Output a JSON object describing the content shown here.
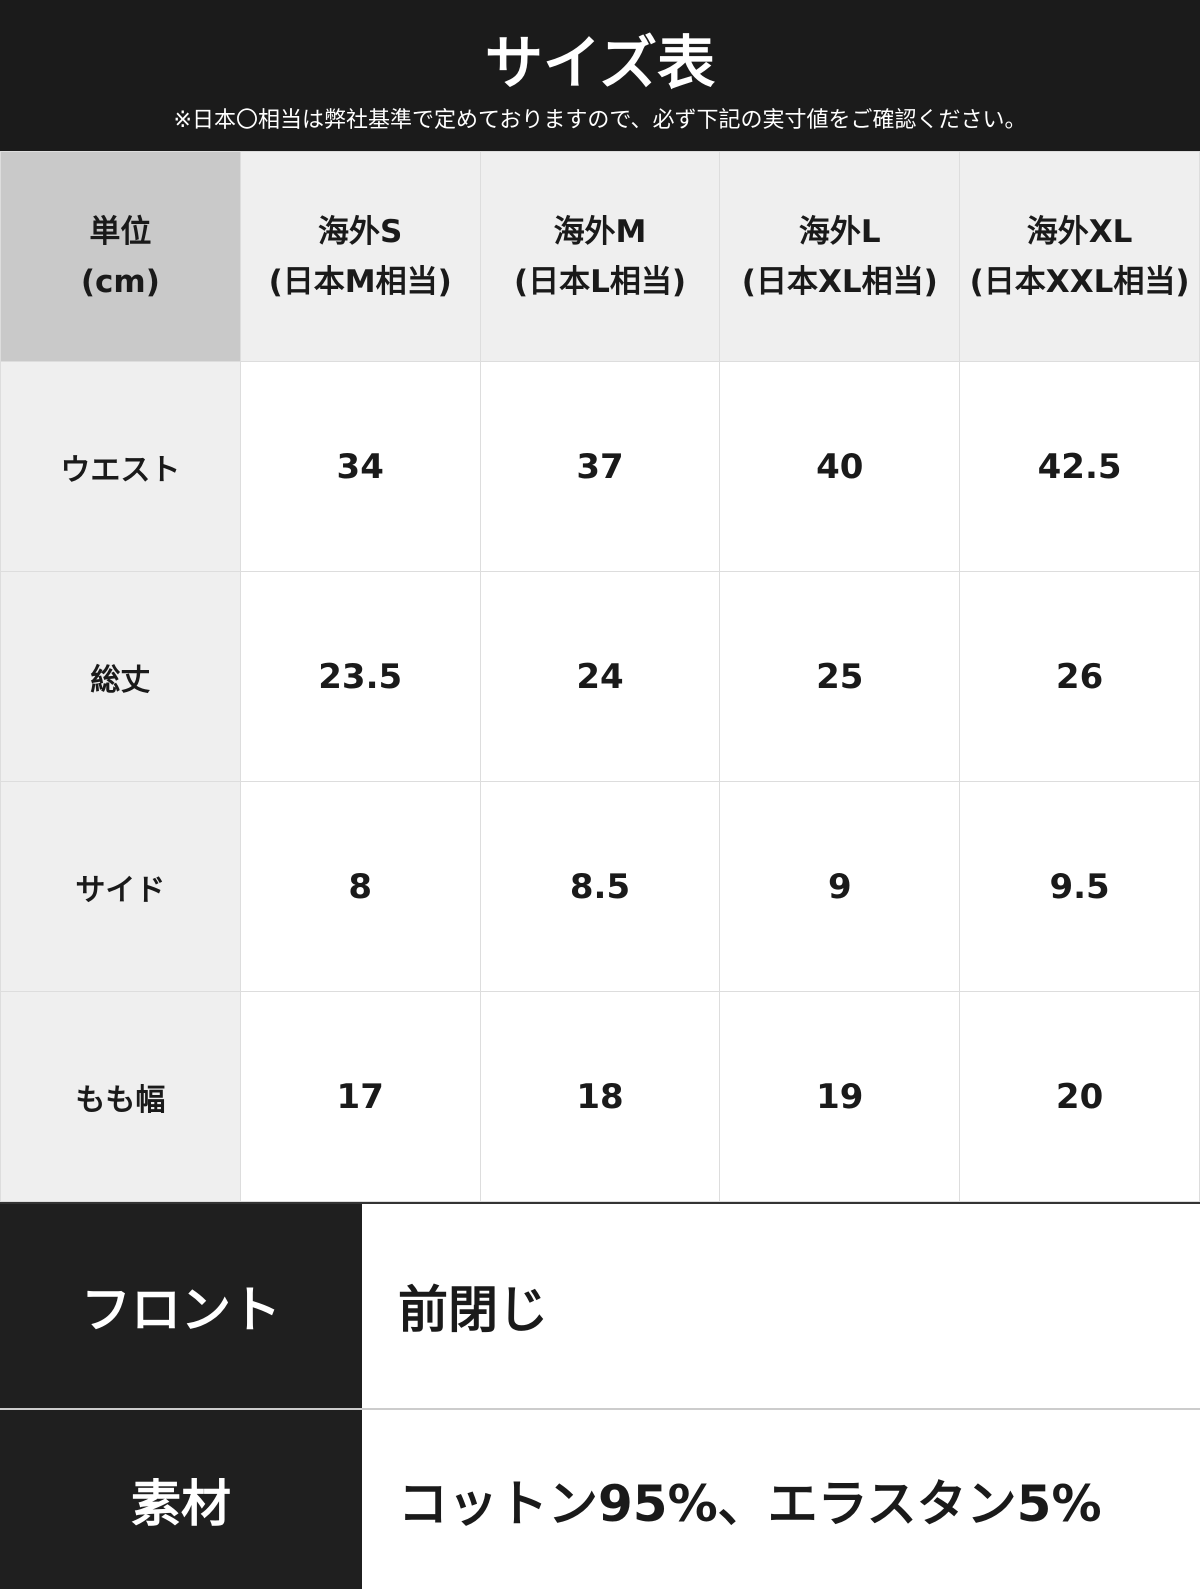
{
  "header": {
    "title": "サイズ表",
    "note": "※日本〇相当は弊社基準で定めておりますので、必ず下記の実寸値をご確認ください。"
  },
  "table": {
    "unit_label": [
      "単位",
      "(cm)"
    ],
    "columns": [
      [
        "海外S",
        "(日本M相当)"
      ],
      [
        "海外M",
        "(日本L相当)"
      ],
      [
        "海外L",
        "(日本XL相当)"
      ],
      [
        "海外XL",
        "(日本XXL相当)"
      ]
    ],
    "rows": [
      {
        "label": "ウエスト",
        "values": [
          "34",
          "37",
          "40",
          "42.5"
        ]
      },
      {
        "label": "総丈",
        "values": [
          "23.5",
          "24",
          "25",
          "26"
        ]
      },
      {
        "label": "サイド",
        "values": [
          "8",
          "8.5",
          "9",
          "9.5"
        ]
      },
      {
        "label": "もも幅",
        "values": [
          "17",
          "18",
          "19",
          "20"
        ]
      }
    ]
  },
  "specs": [
    {
      "label": "フロント",
      "value": "前閉じ"
    },
    {
      "label": "素材",
      "value": "コットン95%、エラスタン5%"
    }
  ]
}
